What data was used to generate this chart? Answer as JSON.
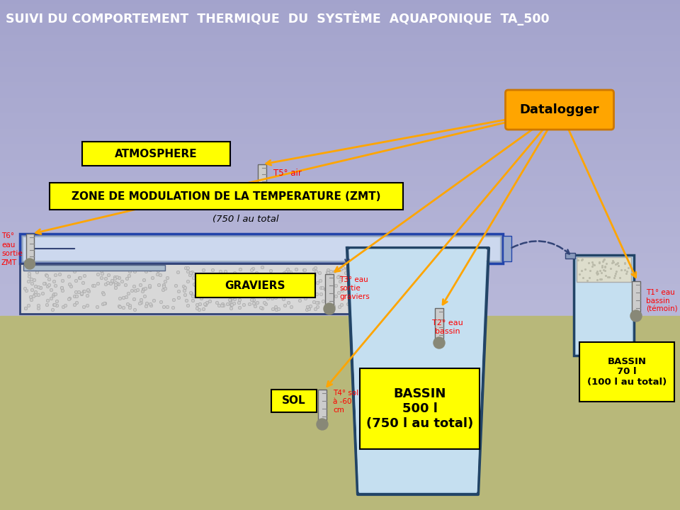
{
  "title": "SUIVI DU COMPORTEMENT  THERMIQUE  DU  SYSTÈME  AQUAPONIQUE  TA_500",
  "atmosphere_label": "ATMOSPHERE",
  "zmt_label": "ZONE DE MODULATION DE LA TEMPERATURE (ZMT)",
  "zmt_sublabel": "(750 l au total",
  "graviers_label": "GRAVIERS",
  "sol_label": "SOL",
  "bassin_label": "BASSIN\n500 l\n(750 l au total)",
  "bassin_small_label": "BASSIN\n70 l\n(100 l au total)",
  "t1_label": "T1° eau\nbassin\n(témoin)",
  "t2_label": "T2° eau\nbassin",
  "t3_label": "T3° eau\nsortie\ngraviers",
  "t4_label": "T4° sol\nà -60\ncm",
  "t5_label": "T5° air",
  "t6_label": "T6°\neau\nsortie\nZMT"
}
